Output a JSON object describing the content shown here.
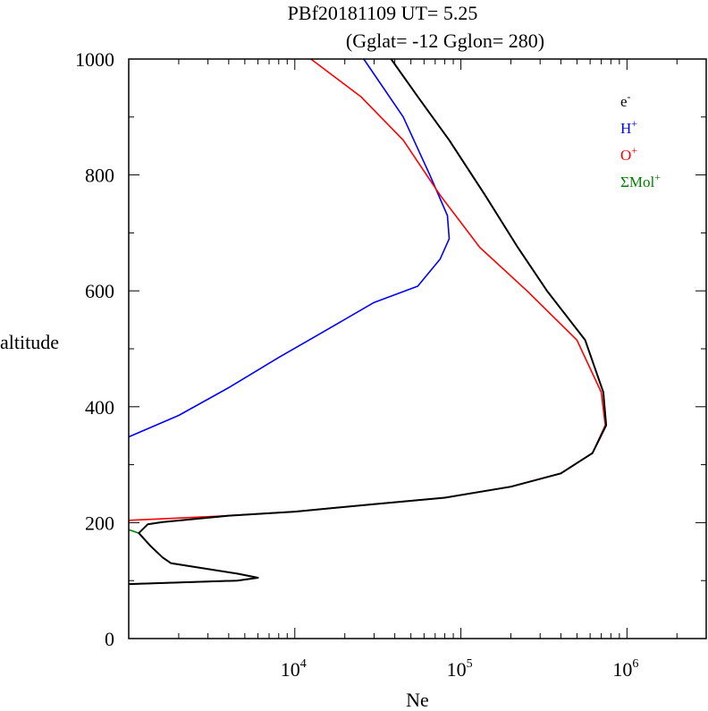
{
  "chart_data": {
    "type": "line",
    "title_line1": "PBf20181109   UT=  5.25",
    "title_line2": "(Gglat= -12   Gglon=  280)",
    "xlabel": "Ne",
    "ylabel": "altitude",
    "x_scale": "log",
    "xlim": [
      1000,
      3000000
    ],
    "ylim": [
      0,
      1000
    ],
    "x_ticks": [
      {
        "value": 10000,
        "base": "10",
        "exp": "4"
      },
      {
        "value": 100000,
        "base": "10",
        "exp": "5"
      },
      {
        "value": 1000000,
        "base": "10",
        "exp": "6"
      }
    ],
    "y_ticks": [
      {
        "value": 0,
        "label": "0"
      },
      {
        "value": 200,
        "label": "200"
      },
      {
        "value": 400,
        "label": "400"
      },
      {
        "value": 600,
        "label": "600"
      },
      {
        "value": 800,
        "label": "800"
      },
      {
        "value": 1000,
        "label": "1000"
      }
    ],
    "legend_position": "top-right",
    "series": [
      {
        "name": "H+",
        "legend_base": "H",
        "legend_sup": "+",
        "color": "#0000ff",
        "points": [
          [
            1000,
            348
          ],
          [
            2000,
            385
          ],
          [
            4000,
            433
          ],
          [
            8000,
            485
          ],
          [
            15000,
            530
          ],
          [
            30000,
            580
          ],
          [
            55000,
            608
          ],
          [
            75000,
            655
          ],
          [
            85000,
            690
          ],
          [
            83000,
            730
          ],
          [
            65000,
            800
          ],
          [
            45000,
            900
          ],
          [
            26000,
            1000
          ]
        ]
      },
      {
        "name": "O+",
        "legend_base": "O",
        "legend_sup": "+",
        "color": "#ff0000",
        "points": [
          [
            1000,
            204
          ],
          [
            4000,
            212
          ],
          [
            10000,
            219
          ],
          [
            30000,
            232
          ],
          [
            80000,
            243
          ],
          [
            200000,
            262
          ],
          [
            400000,
            285
          ],
          [
            620000,
            320
          ],
          [
            740000,
            368
          ],
          [
            700000,
            425
          ],
          [
            500000,
            515
          ],
          [
            250000,
            600
          ],
          [
            130000,
            675
          ],
          [
            75000,
            765
          ],
          [
            45000,
            860
          ],
          [
            25000,
            935
          ],
          [
            12500,
            1000
          ]
        ]
      },
      {
        "name": "ΣMol+",
        "legend_base": "ΣMol",
        "legend_sup": "+",
        "color": "#008000",
        "points": [
          [
            1000,
            188
          ],
          [
            1150,
            182
          ],
          [
            1350,
            160
          ],
          [
            1600,
            140
          ],
          [
            1800,
            130
          ],
          [
            4500,
            112
          ],
          [
            6000,
            105
          ],
          [
            4500,
            100
          ],
          [
            1000,
            94
          ]
        ]
      },
      {
        "name": "e-",
        "legend_base": "e",
        "legend_sup": "-",
        "color": "#000000",
        "points": [
          [
            1000,
            94
          ],
          [
            4500,
            100
          ],
          [
            6000,
            105
          ],
          [
            4500,
            112
          ],
          [
            1800,
            130
          ],
          [
            1600,
            140
          ],
          [
            1350,
            160
          ],
          [
            1150,
            182
          ],
          [
            1300,
            197
          ],
          [
            1600,
            201
          ],
          [
            4000,
            212
          ],
          [
            10000,
            219
          ],
          [
            30000,
            232
          ],
          [
            80000,
            243
          ],
          [
            200000,
            262
          ],
          [
            400000,
            285
          ],
          [
            620000,
            320
          ],
          [
            750000,
            368
          ],
          [
            720000,
            425
          ],
          [
            560000,
            515
          ],
          [
            330000,
            600
          ],
          [
            220000,
            675
          ],
          [
            140000,
            765
          ],
          [
            85000,
            860
          ],
          [
            55000,
            935
          ],
          [
            38000,
            1000
          ]
        ]
      }
    ]
  }
}
